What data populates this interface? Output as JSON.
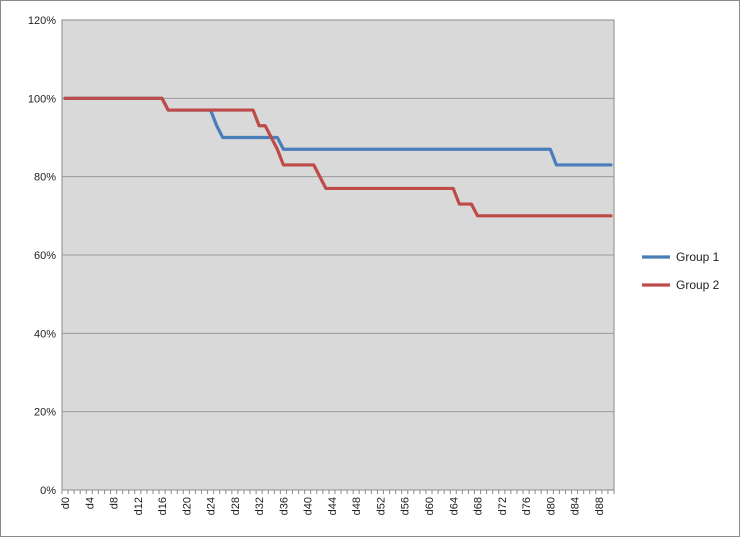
{
  "chart_data": {
    "type": "line",
    "title": "",
    "xlabel": "",
    "ylabel": "",
    "ylim": [
      0,
      1.2
    ],
    "yticks": [
      "0%",
      "20%",
      "40%",
      "60%",
      "80%",
      "100%",
      "120%"
    ],
    "grid": true,
    "legend_position": "right",
    "background_color": "#d9d9d9",
    "x": [
      "d0",
      "d1",
      "d2",
      "d3",
      "d4",
      "d5",
      "d6",
      "d7",
      "d8",
      "d9",
      "d10",
      "d11",
      "d12",
      "d13",
      "d14",
      "d15",
      "d16",
      "d17",
      "d18",
      "d19",
      "d20",
      "d21",
      "d22",
      "d23",
      "d24",
      "d25",
      "d26",
      "d27",
      "d28",
      "d29",
      "d30",
      "d31",
      "d32",
      "d33",
      "d34",
      "d35",
      "d36",
      "d37",
      "d38",
      "d39",
      "d40",
      "d41",
      "d42",
      "d43",
      "d44",
      "d45",
      "d46",
      "d47",
      "d48",
      "d49",
      "d50",
      "d51",
      "d52",
      "d53",
      "d54",
      "d55",
      "d56",
      "d57",
      "d58",
      "d59",
      "d60",
      "d61",
      "d62",
      "d63",
      "d64",
      "d65",
      "d66",
      "d67",
      "d68",
      "d69",
      "d70",
      "d71",
      "d72",
      "d73",
      "d74",
      "d75",
      "d76",
      "d77",
      "d78",
      "d79",
      "d80",
      "d81",
      "d82",
      "d83",
      "d84",
      "d85",
      "d86",
      "d87",
      "d88",
      "d89",
      "d90"
    ],
    "x_tick_labels": [
      "d0",
      "d4",
      "d8",
      "d12",
      "d16",
      "d20",
      "d24",
      "d28",
      "d32",
      "d36",
      "d40",
      "d44",
      "d48",
      "d52",
      "d56",
      "d60",
      "d64",
      "d68",
      "d72",
      "d76",
      "d80",
      "d84",
      "d88"
    ],
    "series": [
      {
        "name": "Group 1",
        "color": "#4a7ebb",
        "values": [
          1,
          1,
          1,
          1,
          1,
          1,
          1,
          1,
          1,
          1,
          1,
          1,
          1,
          1,
          1,
          1,
          1,
          0.97,
          0.97,
          0.97,
          0.97,
          0.97,
          0.97,
          0.97,
          0.97,
          0.93,
          0.9,
          0.9,
          0.9,
          0.9,
          0.9,
          0.9,
          0.9,
          0.9,
          0.9,
          0.9,
          0.87,
          0.87,
          0.87,
          0.87,
          0.87,
          0.87,
          0.87,
          0.87,
          0.87,
          0.87,
          0.87,
          0.87,
          0.87,
          0.87,
          0.87,
          0.87,
          0.87,
          0.87,
          0.87,
          0.87,
          0.87,
          0.87,
          0.87,
          0.87,
          0.87,
          0.87,
          0.87,
          0.87,
          0.87,
          0.87,
          0.87,
          0.87,
          0.87,
          0.87,
          0.87,
          0.87,
          0.87,
          0.87,
          0.87,
          0.87,
          0.87,
          0.87,
          0.87,
          0.87,
          0.87,
          0.83,
          0.83,
          0.83,
          0.83,
          0.83,
          0.83,
          0.83,
          0.83,
          0.83,
          0.83
        ]
      },
      {
        "name": "Group 2",
        "color": "#be4b48",
        "values": [
          1,
          1,
          1,
          1,
          1,
          1,
          1,
          1,
          1,
          1,
          1,
          1,
          1,
          1,
          1,
          1,
          1,
          0.97,
          0.97,
          0.97,
          0.97,
          0.97,
          0.97,
          0.97,
          0.97,
          0.97,
          0.97,
          0.97,
          0.97,
          0.97,
          0.97,
          0.97,
          0.93,
          0.93,
          0.9,
          0.87,
          0.83,
          0.83,
          0.83,
          0.83,
          0.83,
          0.83,
          0.8,
          0.77,
          0.77,
          0.77,
          0.77,
          0.77,
          0.77,
          0.77,
          0.77,
          0.77,
          0.77,
          0.77,
          0.77,
          0.77,
          0.77,
          0.77,
          0.77,
          0.77,
          0.77,
          0.77,
          0.77,
          0.77,
          0.77,
          0.73,
          0.73,
          0.73,
          0.7,
          0.7,
          0.7,
          0.7,
          0.7,
          0.7,
          0.7,
          0.7,
          0.7,
          0.7,
          0.7,
          0.7,
          0.7,
          0.7,
          0.7,
          0.7,
          0.7,
          0.7,
          0.7,
          0.7,
          0.7,
          0.7,
          0.7
        ]
      }
    ]
  }
}
